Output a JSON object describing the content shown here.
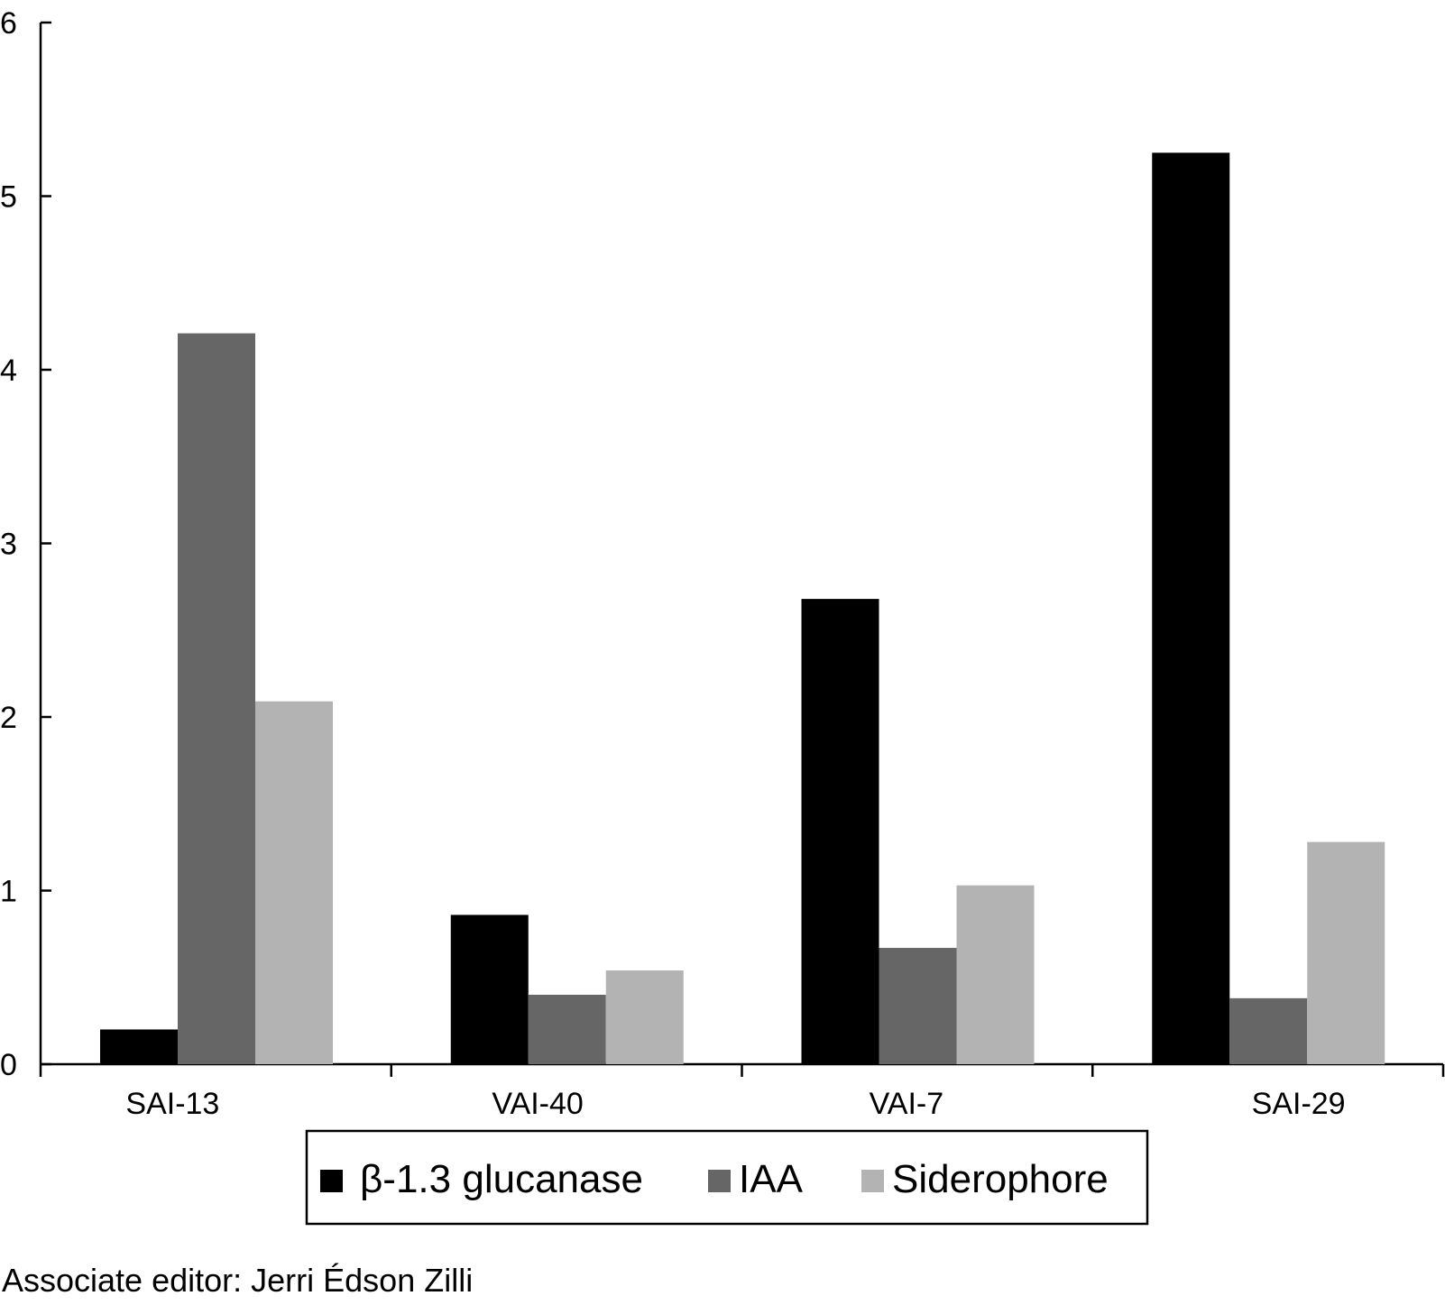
{
  "chart_data": {
    "type": "bar",
    "categories": [
      "SAI-13",
      "VAI-40",
      "VAI-7",
      "SAI-29"
    ],
    "series": [
      {
        "name": "β-1.3 glucanase",
        "color": "#000000",
        "values": [
          0.2,
          0.86,
          2.68,
          5.25
        ]
      },
      {
        "name": "IAA",
        "color": "#666666",
        "values": [
          4.21,
          0.4,
          0.67,
          0.38
        ]
      },
      {
        "name": "Siderophore",
        "color": "#b3b3b3",
        "values": [
          2.09,
          0.54,
          1.03,
          1.28
        ]
      }
    ],
    "yticks": [
      "0",
      "1",
      "2",
      "3",
      "4",
      "5",
      "6"
    ],
    "ylim": [
      0,
      6
    ],
    "grid": false,
    "legend_position": "bottom"
  },
  "footer": {
    "text": "Associate editor: Jerri Édson Zilli"
  }
}
